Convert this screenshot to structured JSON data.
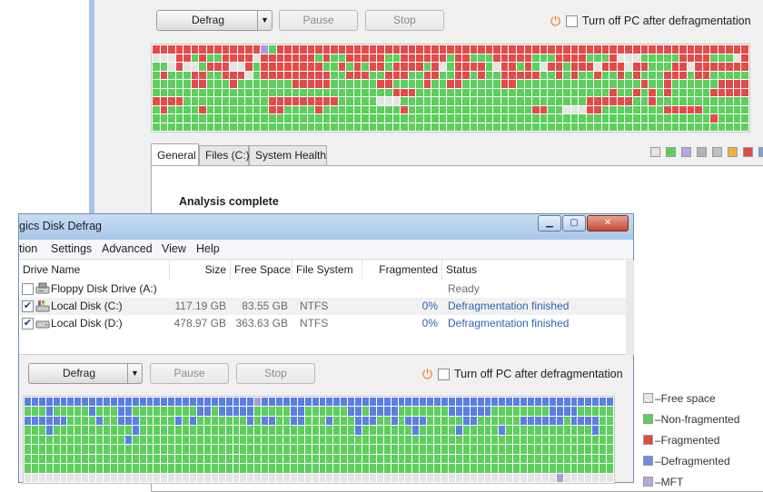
{
  "bg_window": {
    "toolbar": {
      "defrag_label": "Defrag",
      "pause_label": "Pause",
      "stop_label": "Stop",
      "shutdown_label": "Turn off PC after defragmentation"
    },
    "tabs": [
      {
        "label": "General"
      },
      {
        "label": "Files (C:)"
      },
      {
        "label": "System Health"
      }
    ],
    "analysis_status": "Analysis complete",
    "map": {
      "rows": [
        "RRRRRRRRRRRRRRPGRRRRRRRRRRRRRRRRRRRRRRRRRRRRRRRRRRRRRRRRRRRRRRRRRRRRRRRRRR",
        "FFFRRGRGGRRRRFRRRRRRRGRGGRRRRRGGRRRRRRGRRGGGRRRRRGGGRRRRGGGRFFFGGGGGRRRRGGGFR",
        "GGFRFFGRRRFFRGRRRRRRRRGGRGRGRRGRRRRGRFGRRRRGFRRGRGFRRGRRRFRRRFRRGGGRRFRRRR",
        "GRGGGRRGGRRRFGRRRRRRRRRGGRRRGGRRRGGRRGGRRGRGGRRRRRGGRGRGGRGGRGRGGGRRRGRRGG",
        "GGGGGRRGGGRGGGGGGGRRRRRGGGGGGRRGGGGRGGRRGGGGGRRGGGGGGGGGGGGGGGGRGGRGGGGGGR",
        "GGGGGGGGGGGGGGGGGGGGGGGGGGGGGGGRRRGGGGGGGGGGGGGGGGGGGGGGGGGRGGRGRGRGGGGGRR",
        "RRRRGGGGGGGGGGGRRRRRRRRRGGGGGFFFGGGGGGGGGGGGGGGGGGGGGGGGRRRRRRGGRGGGGGGGGG",
        "GRGGGGRGGGGGGGGRRGGGGRGGGGGGGGGGRGGGGGGGGGGGGGGGGRRGGFFFRRGGGGGGGGRRRRRGGG",
        "GGGGGGGGGGGGGGGGGGGGGGGGGGGGGGGGGGGGGGGGGGGGGGGGGGGGGGGGGGGGGGGGGGGGGGGGRG",
        "GGGGGGGGGGGGGGGGGGGGGGGGGGGGGGGGGGGGGGGGGGGGGGGGGGGGGGGGGGGGGGGGGGGGGGGGGG"
      ]
    },
    "legend_colors": [
      "#e6e6e6",
      "#5bd15b",
      "#b9a6e0",
      "#b3b3b3",
      "#bfbfbf",
      "#f6b13c",
      "#e04a4a",
      "#7f9fe0"
    ]
  },
  "fg_window": {
    "title": "gics Disk Defrag",
    "caption_buttons": {
      "minimize": "▁",
      "maximize": "▢",
      "close": "✕"
    },
    "menu": [
      "tion",
      "Settings",
      "Advanced",
      "View",
      "Help"
    ],
    "columns": {
      "drive_name": "Drive Name",
      "size": "Size",
      "free_space": "Free Space",
      "file_system": "File System",
      "fragmented": "Fragmented",
      "status": "Status"
    },
    "drives": [
      {
        "name": "Floppy Disk Drive (A:)",
        "size": "",
        "free": "",
        "fs": "",
        "frag": "",
        "status": "Ready",
        "checked": false,
        "icon": "floppy-drive-icon"
      },
      {
        "name": "Local Disk (C:)",
        "size": "117.19 GB",
        "free": "83.55 GB",
        "fs": "NTFS",
        "frag": "0%",
        "status": "Defragmentation finished",
        "checked": true,
        "icon": "system-drive-icon"
      },
      {
        "name": "Local Disk (D:)",
        "size": "478.97 GB",
        "free": "363.63 GB",
        "fs": "NTFS",
        "frag": "0%",
        "status": "Defragmentation finished",
        "checked": true,
        "icon": "hard-drive-icon"
      }
    ],
    "toolbar": {
      "defrag_label": "Defrag",
      "pause_label": "Pause",
      "stop_label": "Stop",
      "shutdown_label": "Turn off PC after defragmentation"
    },
    "map": {
      "rows": [
        "BBBBBBBBBBBBBBBBBBBBBBBBBBBBBBBBPBBBBBBBBBBBBBBBBBBBBBBBBBBBBBBBBBBBBBBBBBBBBBBBBB",
        "GGGBGGGGGBGGGBBGGGGGGGGGBBGBBBBBGGGGGBBGGGGGGBBGBBBBGGGGGGGBBBBBBGGGGGGGGBBBBGGG",
        "BBBBBBGGGGBGGBBBGGGGGBGBGGGGGGGBGBBGGBBGGGBGGGBBBGGBGBBBGGGGGBBGGGGGGBBBBBBGBBBBG",
        "GGGBGGGGGGGGGGGBGGGGGGGGGGGGGGGGGGGGGGGGGGGGGGBGGGGGGGBGGGGGBGGGGGBGGGGGGGGGGGGBGG",
        "GGGGGGGGGGGGGGBGGGGGGGGGGGGGGGGGGGGGGGGGGGGGGGGGGGGGGGGGGGGGGGGGGGGGGGGGGGGGGGGGG",
        "GGGGGGGGGGGGGGGGGGGGGGGGGGGGGGGGGGGGGGGGGGGGGGGGGGGGGGGGGGGGGGGGGGGGGGGGGGGGGGGGGG",
        "GGGGGGGGGGGGGGGGGGGGGGGGGGGGGGGGGGGGGGGGGGGGGGGGGGGGGGGGGGGGGGGGGGGGGGGGGGGGGGGGGG",
        "GGGGGGGGGGGGGGGGGGGGGGGGGGGGGGGGGGGGGGGGGGGGGGGGGGGGGGGGGGGGGGGGGGGGGGGGGGGGGGGGGG",
        "FFFFFFFFFFFFFFFFFFFFFFFFFFFFFFFFFFFFFFFFFFFFFFFFFFFFFFFFFFFFFFFFFFFFFFFFFFPFFFFFFF"
      ]
    }
  },
  "legend": [
    {
      "label": "Free space",
      "color": "#e6e6e6"
    },
    {
      "label": "Non-fragmented",
      "color": "#5bd15b"
    },
    {
      "label": "Fragmented",
      "color": "#e04a4a"
    },
    {
      "label": "Defragmented",
      "color": "#6f8fe0"
    },
    {
      "label": "MFT",
      "color": "#b9a6e0"
    }
  ],
  "palette": {
    "R": "#e34b4b",
    "G": "#5ccf5c",
    "F": "#e4e4e4",
    "B": "#5a7fe0",
    "P": "#a99bd9"
  }
}
